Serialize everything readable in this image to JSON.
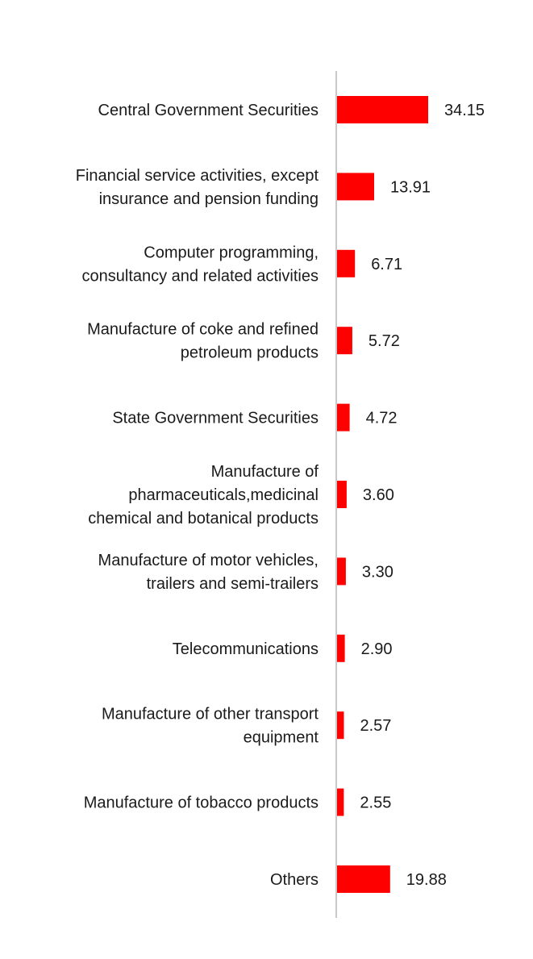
{
  "chart_data": {
    "type": "bar",
    "orientation": "horizontal",
    "categories": [
      [
        "Central Government Securities"
      ],
      [
        "Financial service activities, except",
        "insurance and pension funding"
      ],
      [
        "Computer programming,",
        "consultancy and related activities"
      ],
      [
        "Manufacture of coke and refined",
        "petroleum products"
      ],
      [
        "State Government Securities"
      ],
      [
        "Manufacture of",
        "pharmaceuticals,medicinal",
        "chemical and botanical products"
      ],
      [
        "Manufacture of motor vehicles,",
        "trailers and semi-trailers"
      ],
      [
        "Telecommunications"
      ],
      [
        "Manufacture of other transport",
        "equipment"
      ],
      [
        "Manufacture of tobacco products"
      ],
      [
        "Others"
      ]
    ],
    "values": [
      34.15,
      13.91,
      6.71,
      5.72,
      4.72,
      3.6,
      3.3,
      2.9,
      2.57,
      2.55,
      19.88
    ],
    "value_labels": [
      "34.15",
      "13.91",
      "6.71",
      "5.72",
      "4.72",
      "3.60",
      "3.30",
      "2.90",
      "2.57",
      "2.55",
      "19.88"
    ],
    "bar_color": "#ff0000",
    "axis_color": "#c8c8c8",
    "xlim": [
      0,
      34.15
    ],
    "grid": false,
    "legend": "none",
    "title": "",
    "xlabel": "",
    "ylabel": ""
  }
}
